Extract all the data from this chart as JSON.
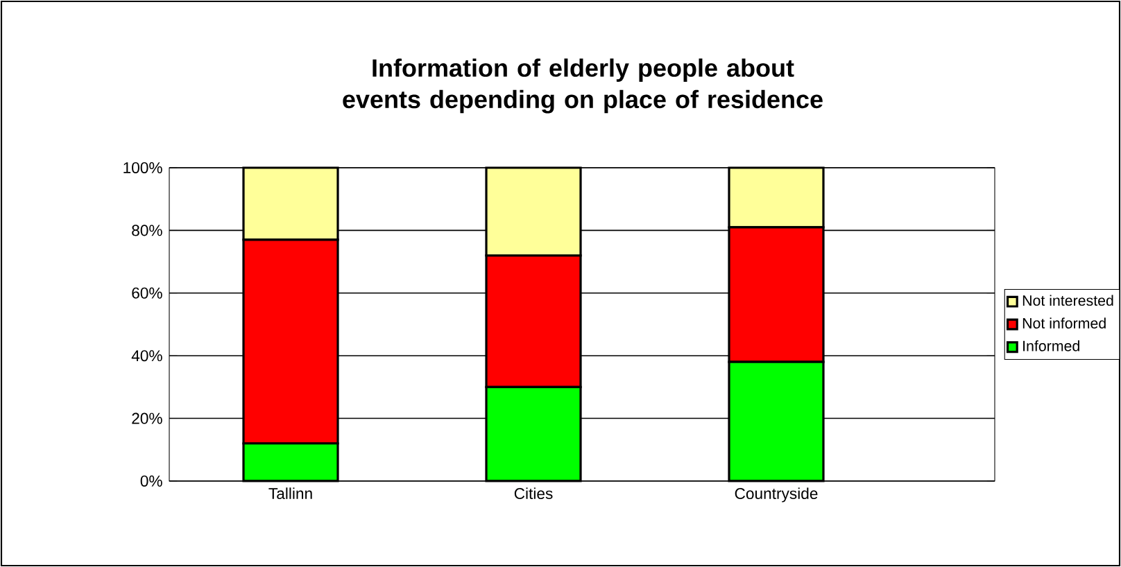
{
  "chart_data": {
    "type": "bar",
    "stacked": true,
    "title": "Information of elderly people about events depending on place of residence",
    "categories": [
      "Tallinn",
      "Cities",
      "Countryside"
    ],
    "series": [
      {
        "name": "Informed",
        "color": "#00ff00",
        "values": [
          12,
          30,
          38
        ]
      },
      {
        "name": "Not informed",
        "color": "#ff0000",
        "values": [
          65,
          42,
          43
        ]
      },
      {
        "name": "Not interested",
        "color": "#ffff99",
        "values": [
          23,
          28,
          19
        ]
      }
    ],
    "ylim": [
      0,
      100
    ],
    "yticks": [
      {
        "value": 0,
        "label": "0%"
      },
      {
        "value": 20,
        "label": "20%"
      },
      {
        "value": 40,
        "label": "40%"
      },
      {
        "value": 60,
        "label": "60%"
      },
      {
        "value": 80,
        "label": "80%"
      },
      {
        "value": 100,
        "label": "100%"
      }
    ],
    "grid": "y",
    "legend": "right"
  }
}
